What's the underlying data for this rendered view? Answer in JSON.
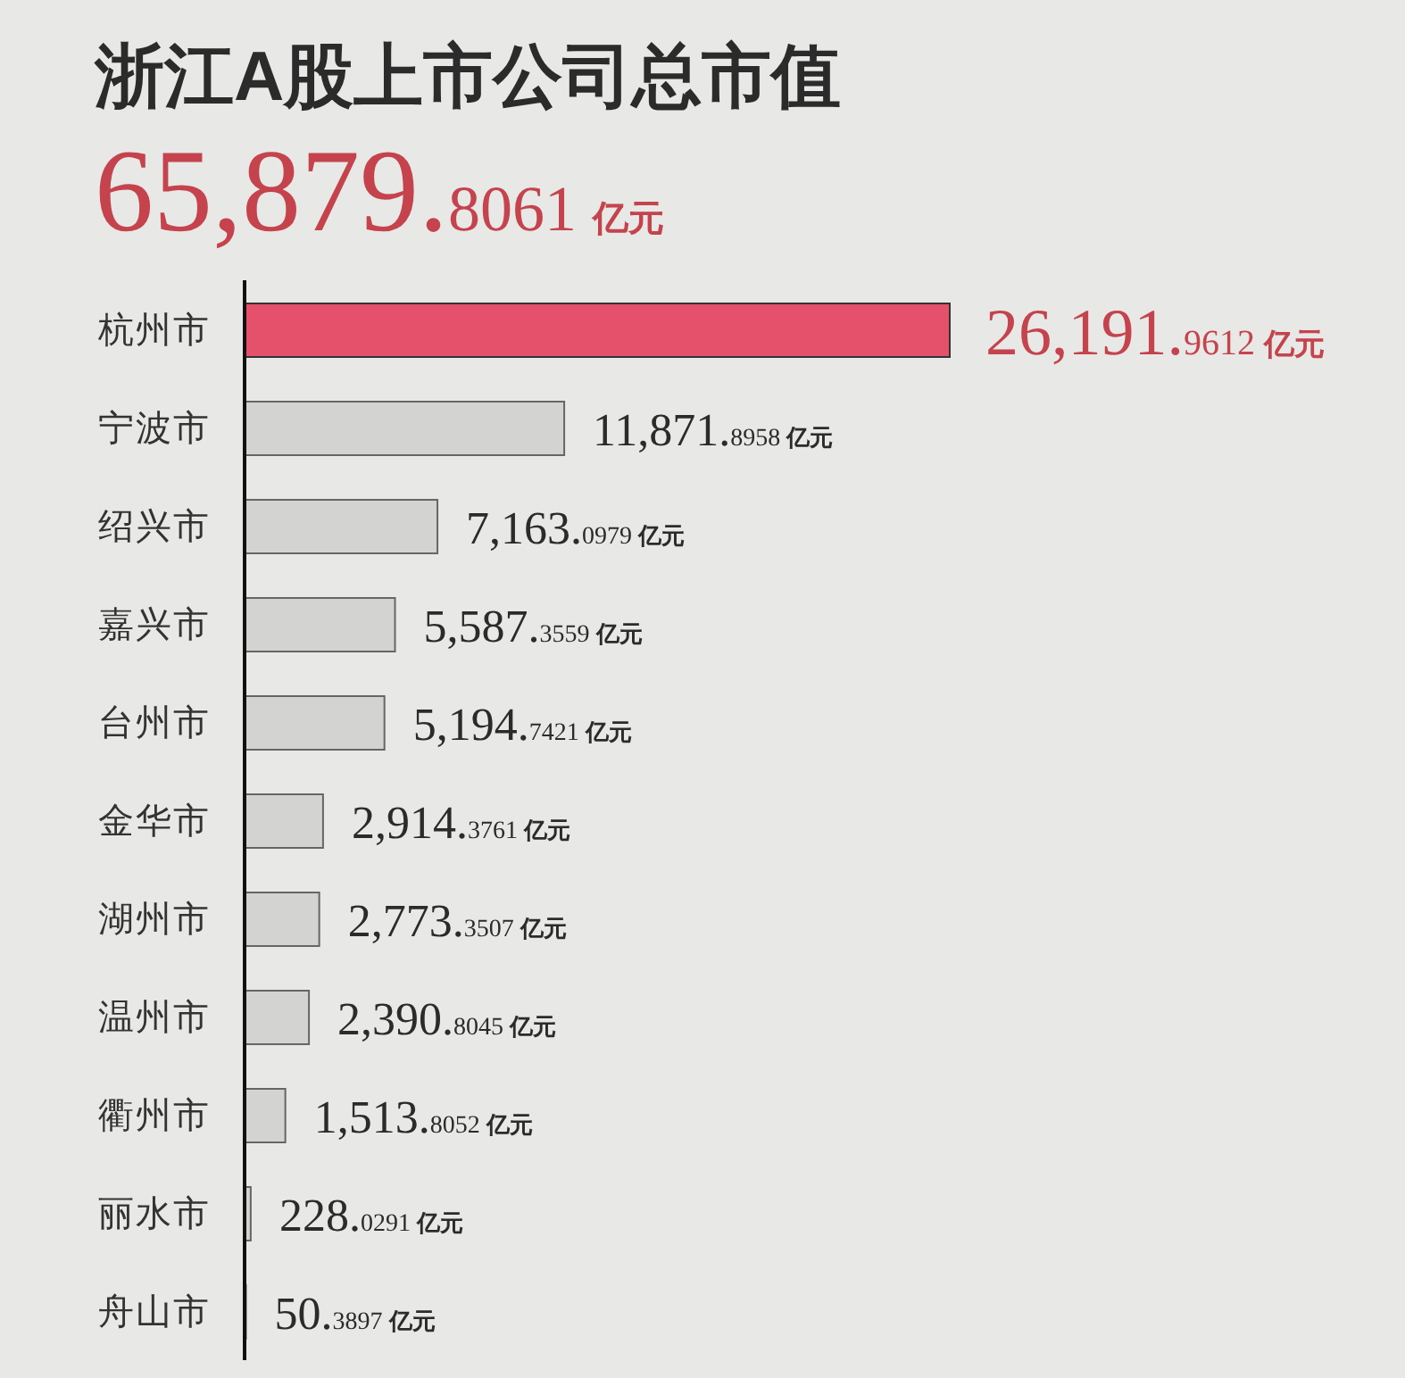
{
  "chart_data": {
    "type": "bar",
    "orientation": "horizontal",
    "title": "浙江A股上市公司总市值",
    "subtitle": "65,879.8061 亿元",
    "categories": [
      "杭州市",
      "宁波市",
      "绍兴市",
      "嘉兴市",
      "台州市",
      "金华市",
      "湖州市",
      "温州市",
      "衢州市",
      "丽水市",
      "舟山市"
    ],
    "values": [
      26191.9612,
      11871.8958,
      7163.0979,
      5587.3559,
      5194.7421,
      2914.3761,
      2773.3507,
      2390.8045,
      1513.8052,
      228.0291,
      50.3897
    ],
    "colors": [
      "#e5506a",
      "#d3d3d1",
      "#d3d3d1",
      "#d3d3d1",
      "#d3d3d1",
      "#d3d3d1",
      "#d3d3d1",
      "#d3d3d1",
      "#d3d3d1",
      "#d3d3d1",
      "#d3d3d1"
    ],
    "value_labels": [
      "26,191.9612 亿元",
      "11,871.8958 亿元",
      "7,163.0979 亿元",
      "5,587.3559 亿元",
      "5,194.7421 亿元",
      "2,914.3761 亿元",
      "2,773.3507 亿元",
      "2,390.8045 亿元",
      "1,513.8052 亿元",
      "228.0291 亿元",
      "50.3897 亿元"
    ]
  }
}
